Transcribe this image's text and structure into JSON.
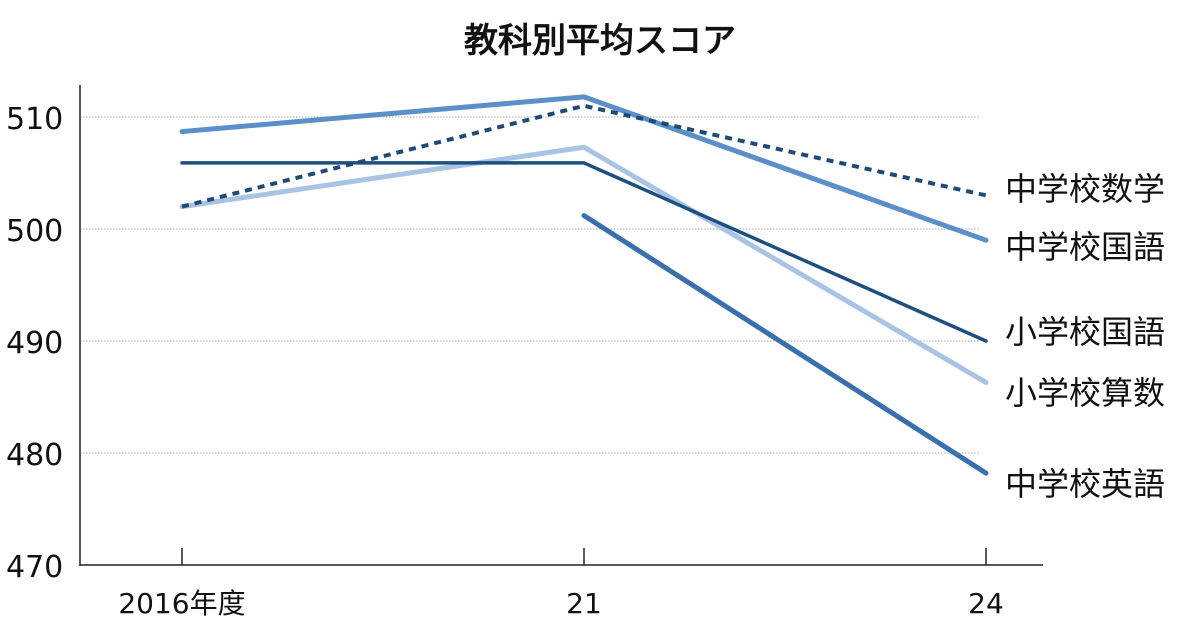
{
  "chart_data": {
    "type": "line",
    "title": "教科別平均スコア",
    "x_categories": [
      "2016年度",
      "21",
      "24"
    ],
    "x_values": [
      2016,
      2021,
      2024
    ],
    "ylim": [
      470,
      512
    ],
    "yticks": [
      470,
      480,
      490,
      500,
      510
    ],
    "grid": true,
    "legend_placement": "right end labels",
    "series": [
      {
        "name": "中学校数学",
        "values": [
          502,
          511,
          503
        ],
        "color": "#1f4a75",
        "dashed": true
      },
      {
        "name": "中学校国語",
        "values": [
          508.7,
          511.8,
          499
        ],
        "color": "#5b8fc9",
        "dashed": false
      },
      {
        "name": "小学校国語",
        "values": [
          505.9,
          505.9,
          490
        ],
        "color": "#1d4f80",
        "dashed": false
      },
      {
        "name": "小学校算数",
        "values": [
          502,
          507.3,
          486.3
        ],
        "color": "#a8c3e3",
        "dashed": false
      },
      {
        "name": "中学校英語",
        "values": [
          null,
          501.2,
          478.2
        ],
        "color": "#3a6fae",
        "dashed": false
      }
    ]
  }
}
